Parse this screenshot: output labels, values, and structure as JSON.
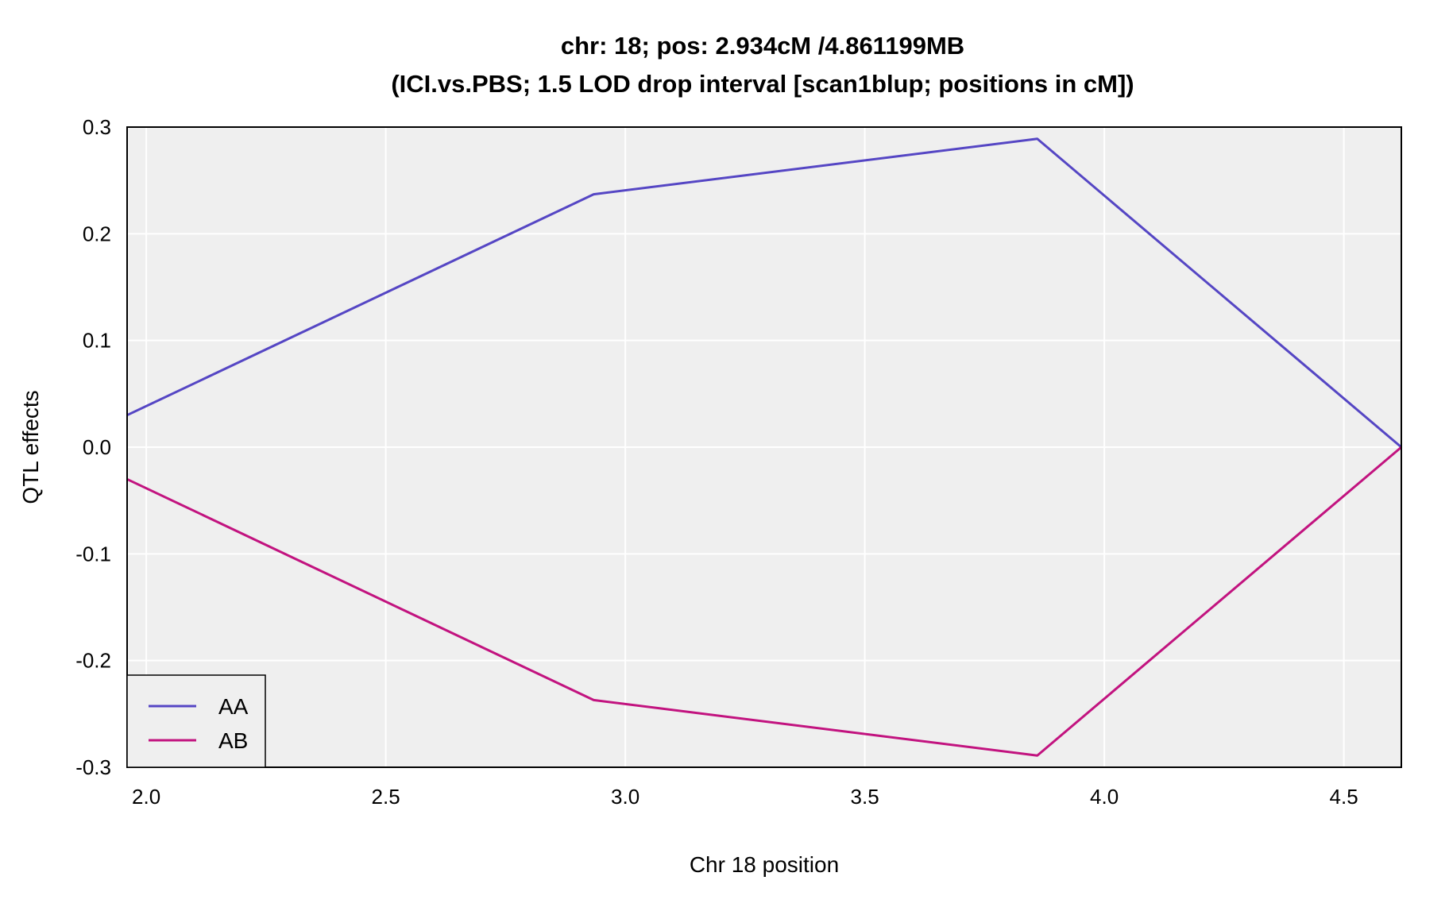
{
  "chart_data": {
    "type": "line",
    "title": "chr: 18; pos: 2.934cM /4.861199MB",
    "subtitle": "(ICI.vs.PBS; 1.5 LOD drop interval [scan1blup; positions in cM])",
    "xlabel": "Chr 18 position",
    "ylabel": "QTL effects",
    "xlim": [
      1.96,
      4.62
    ],
    "ylim": [
      -0.3,
      0.3
    ],
    "xticks": [
      2.0,
      2.5,
      3.0,
      3.5,
      4.0,
      4.5
    ],
    "xtick_labels": [
      "2.0",
      "2.5",
      "3.0",
      "3.5",
      "4.0",
      "4.5"
    ],
    "yticks": [
      -0.3,
      -0.2,
      -0.1,
      0.0,
      0.1,
      0.2,
      0.3
    ],
    "ytick_labels": [
      "-0.3",
      "-0.2",
      "-0.1",
      "0.0",
      "0.1",
      "0.2",
      "0.3"
    ],
    "grid": true,
    "legend_position": "bottom-left",
    "series": [
      {
        "name": "AA",
        "color": "#5546c4",
        "x": [
          1.96,
          2.934,
          3.86,
          4.62
        ],
        "y": [
          0.03,
          0.237,
          0.289,
          0.0
        ]
      },
      {
        "name": "AB",
        "color": "#c2137f",
        "x": [
          1.96,
          2.934,
          3.86,
          4.62
        ],
        "y": [
          -0.03,
          -0.237,
          -0.289,
          0.0
        ]
      }
    ],
    "plot_background": "#efefef",
    "grid_color": "#ffffff"
  }
}
